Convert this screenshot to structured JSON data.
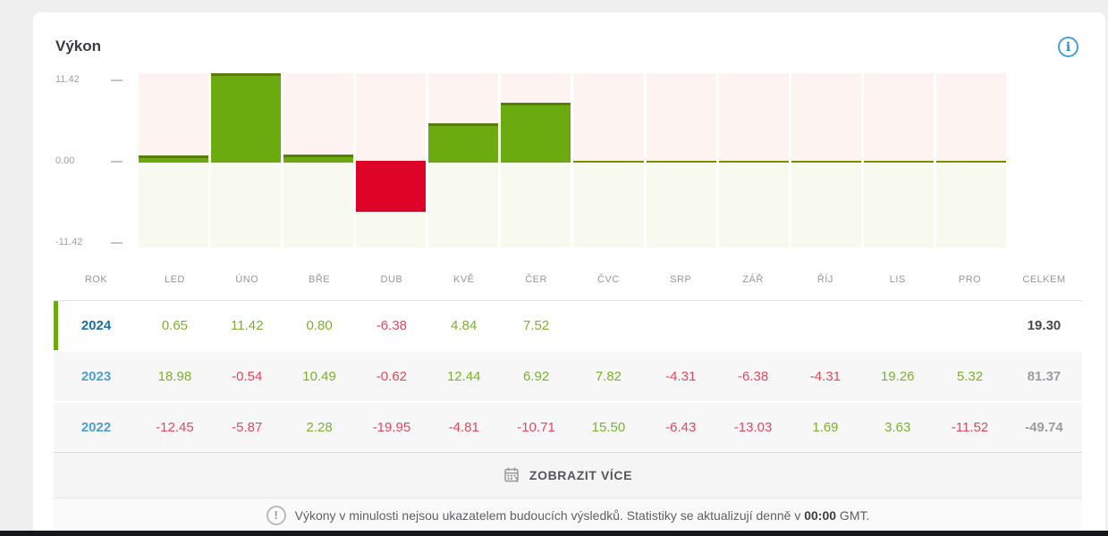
{
  "title": "Výkon",
  "colors": {
    "bar_positive": "#6cab10",
    "bar_positive_edge": "#567d04",
    "bar_negative": "#dd0427",
    "bar_negative_edge": "#b90321",
    "zone_above_zero": "#fdf3f0",
    "zone_below_zero": "#f8faef",
    "baseline": "#7a8c00",
    "value_positive_text": "#7ab32b",
    "value_negative_text": "#e5485e",
    "year_active": "#1c6da8",
    "year_past": "#4d9fd2",
    "total_active": "#47474c",
    "total_past": "#9b9ba0",
    "active_row_accent": "#6cab10"
  },
  "chart_data": {
    "type": "bar",
    "title": "Výkon",
    "categories": [
      "LED",
      "ÚNO",
      "BŘE",
      "DUB",
      "KVĚ",
      "ČER",
      "ČVC",
      "SRP",
      "ZÁŘ",
      "ŘÍJ",
      "LIS",
      "PRO"
    ],
    "values": [
      0.65,
      11.42,
      0.8,
      -6.38,
      4.84,
      7.52,
      null,
      null,
      null,
      null,
      null,
      null
    ],
    "series_name": "2024",
    "y_ticks": [
      "11.42",
      "0.00",
      "-11.42"
    ],
    "ylim": [
      -11.42,
      11.42
    ],
    "grid": false,
    "legend": "none"
  },
  "table": {
    "columns": [
      "ROK",
      "LED",
      "ÚNO",
      "BŘE",
      "DUB",
      "KVĚ",
      "ČER",
      "ČVC",
      "SRP",
      "ZÁŘ",
      "ŘÍJ",
      "LIS",
      "PRO",
      "CELKEM"
    ],
    "rows": [
      {
        "year": "2024",
        "active": true,
        "values": [
          "0.65",
          "11.42",
          "0.80",
          "-6.38",
          "4.84",
          "7.52",
          "",
          "",
          "",
          "",
          "",
          ""
        ],
        "total": "19.30"
      },
      {
        "year": "2023",
        "active": false,
        "values": [
          "18.98",
          "-0.54",
          "10.49",
          "-0.62",
          "12.44",
          "6.92",
          "7.82",
          "-4.31",
          "-6.38",
          "-4.31",
          "19.26",
          "5.32"
        ],
        "total": "81.37"
      },
      {
        "year": "2022",
        "active": false,
        "values": [
          "-12.45",
          "-5.87",
          "2.28",
          "-19.95",
          "-4.81",
          "-10.71",
          "15.50",
          "-6.43",
          "-13.03",
          "1.69",
          "3.63",
          "-11.52"
        ],
        "total": "-49.74"
      }
    ]
  },
  "show_more": {
    "label": "ZOBRAZIT VÍCE",
    "icon": "calendar-arrow-icon"
  },
  "footer": {
    "icon": "exclamation-circle-icon",
    "text": "Výkony v minulosti nejsou ukazatelem budoucích výsledků. Statistiky se aktualizují denně v ",
    "time": "00:00",
    "suffix": " GMT."
  }
}
